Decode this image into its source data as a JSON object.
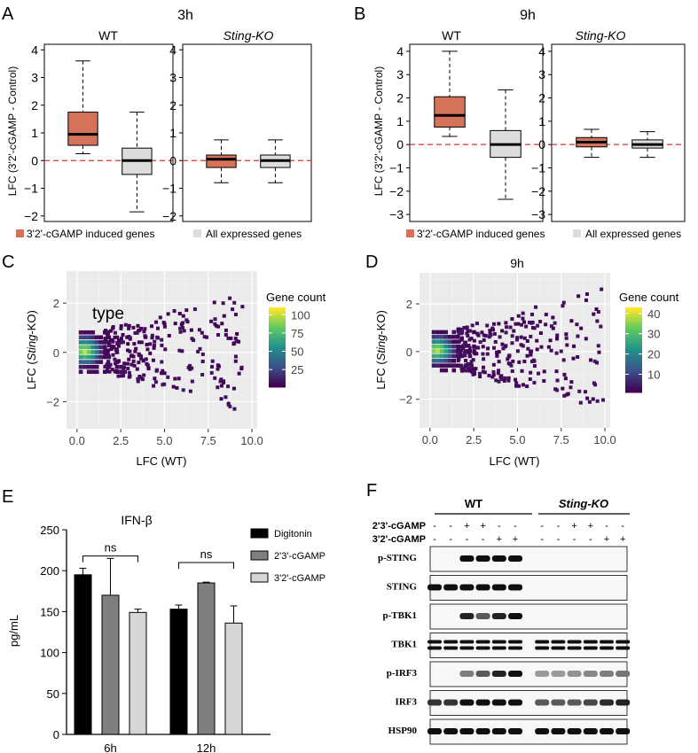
{
  "panels": {
    "A": {
      "letter": "A",
      "time": "3h",
      "subplot_titles": [
        "WT",
        "Sting-KO"
      ],
      "ylabel": "LFC (3'2'-cGAMP - Control)",
      "legend": [
        "3'2'-cGAMP induced genes",
        "All expressed genes"
      ]
    },
    "B": {
      "letter": "B",
      "time": "9h",
      "subplot_titles": [
        "WT",
        "Sting-KO"
      ],
      "ylabel": "LFC (3'2'-cGAMP - Control)",
      "legend": [
        "3'2'-cGAMP induced genes",
        "All expressed genes"
      ]
    },
    "C": {
      "letter": "C",
      "time": "3h",
      "xlabel": "LFC (WT)",
      "ylabel": "LFC (Sting-KO)",
      "overlay_text": "type",
      "colorbar_title": "Gene count",
      "colorbar_ticks": [
        "100",
        "75",
        "50",
        "25"
      ]
    },
    "D": {
      "letter": "D",
      "time": "9h",
      "xlabel": "LFC (WT)",
      "ylabel": "LFC (Sting-KO)",
      "colorbar_title": "Gene count",
      "colorbar_ticks": [
        "40",
        "30",
        "20",
        "10"
      ]
    },
    "E": {
      "letter": "E",
      "title": "IFN-β",
      "ylabel": "pg/mL",
      "sig": [
        "ns",
        "ns"
      ]
    },
    "F": {
      "letter": "F",
      "groups": [
        "WT",
        "Sting-KO"
      ],
      "treatments": [
        {
          "label": "2'3'-cGAMP",
          "marks": [
            "-",
            "-",
            "+",
            "+",
            "-",
            "-",
            "-",
            "-",
            "+",
            "+",
            "-",
            "-"
          ]
        },
        {
          "label": "3'2'-cGAMP",
          "marks": [
            "-",
            "-",
            "-",
            "-",
            "+",
            "+",
            "-",
            "-",
            "-",
            "-",
            "+",
            "+"
          ]
        }
      ],
      "blots": [
        "p-STING",
        "STING",
        "p-TBK1",
        "TBK1",
        "p-IRF3",
        "IRF3",
        "HSP90"
      ]
    }
  },
  "colors": {
    "induced": "#d4735a",
    "all": "#dcdcdc",
    "zero_line": "#e0302b"
  },
  "chart_data": [
    {
      "type": "box",
      "panel": "A",
      "title": "3h WT",
      "ylim": [
        -2.2,
        4.2
      ],
      "yticks": [
        4,
        3,
        2,
        1,
        0,
        -1,
        -2
      ],
      "boxes": [
        {
          "name": "3'2'-cGAMP induced genes",
          "min": 0.25,
          "q1": 0.55,
          "median": 0.95,
          "q3": 1.75,
          "max": 3.6
        },
        {
          "name": "All expressed genes",
          "min": -1.85,
          "q1": -0.5,
          "median": 0.0,
          "q3": 0.45,
          "max": 1.75
        }
      ]
    },
    {
      "type": "box",
      "panel": "A",
      "title": "3h Sting-KO",
      "ylim": [
        -2.2,
        4.2
      ],
      "yticks": [
        4,
        3,
        2,
        1,
        0,
        -1,
        -2
      ],
      "boxes": [
        {
          "name": "3'2'-cGAMP induced genes",
          "min": -0.8,
          "q1": -0.25,
          "median": 0.05,
          "q3": 0.2,
          "max": 0.75
        },
        {
          "name": "All expressed genes",
          "min": -0.8,
          "q1": -0.25,
          "median": 0.0,
          "q3": 0.2,
          "max": 0.75
        }
      ]
    },
    {
      "type": "box",
      "panel": "B",
      "title": "9h WT",
      "ylim": [
        -3.3,
        4.3
      ],
      "yticks": [
        4,
        3,
        2,
        1,
        0,
        -1,
        -2,
        -3
      ],
      "boxes": [
        {
          "name": "3'2'-cGAMP induced genes",
          "min": 0.35,
          "q1": 0.75,
          "median": 1.25,
          "q3": 2.05,
          "max": 4.0
        },
        {
          "name": "All expressed genes",
          "min": -2.35,
          "q1": -0.55,
          "median": 0.0,
          "q3": 0.6,
          "max": 2.35
        }
      ]
    },
    {
      "type": "box",
      "panel": "B",
      "title": "9h Sting-KO",
      "ylim": [
        -3.3,
        4.3
      ],
      "yticks": [
        4,
        3,
        2,
        1,
        0,
        -1,
        -2,
        -3
      ],
      "boxes": [
        {
          "name": "3'2'-cGAMP induced genes",
          "min": -0.55,
          "q1": -0.1,
          "median": 0.1,
          "q3": 0.3,
          "max": 0.65
        },
        {
          "name": "All expressed genes",
          "min": -0.55,
          "q1": -0.15,
          "median": 0.0,
          "q3": 0.2,
          "max": 0.55
        }
      ]
    },
    {
      "type": "heatmap",
      "panel": "C",
      "title": "3h",
      "xlim": [
        -0.6,
        10.3
      ],
      "ylim": [
        -3.1,
        3.3
      ],
      "xticks": [
        0.0,
        2.5,
        5.0,
        7.5,
        10.0
      ],
      "xtick_labels": [
        "0.0",
        "2.5",
        "5.0",
        "7.5",
        "10.0"
      ],
      "yticks": [
        2,
        0,
        -2
      ],
      "colorbar_range": [
        1,
        110
      ]
    },
    {
      "type": "heatmap",
      "panel": "D",
      "title": "9h",
      "xlim": [
        -0.6,
        10.3
      ],
      "ylim": [
        -3.2,
        3.3
      ],
      "xticks": [
        0.0,
        2.5,
        5.0,
        7.5,
        10.0
      ],
      "xtick_labels": [
        "0.0",
        "2.5",
        "5.0",
        "7.5",
        "10.0"
      ],
      "yticks": [
        2,
        0,
        -2
      ],
      "colorbar_range": [
        1,
        43
      ]
    },
    {
      "type": "bar",
      "panel": "E",
      "title": "IFN-β",
      "categories": [
        "6h",
        "12h"
      ],
      "ylabel": "pg/mL",
      "ylim": [
        0,
        250
      ],
      "yticks": [
        250,
        200,
        150,
        100,
        50,
        0
      ],
      "series": [
        {
          "name": "Digitonin",
          "color": "#000000",
          "values": [
            195,
            153
          ],
          "errors": [
            8,
            5
          ]
        },
        {
          "name": "2'3'-cGAMP",
          "color": "#7f7f7f",
          "values": [
            170,
            185
          ],
          "errors": [
            45,
            1
          ]
        },
        {
          "name": "3'2'-cGAMP",
          "color": "#d6d6d6",
          "values": [
            149,
            136
          ],
          "errors": [
            4,
            21
          ]
        }
      ]
    }
  ]
}
